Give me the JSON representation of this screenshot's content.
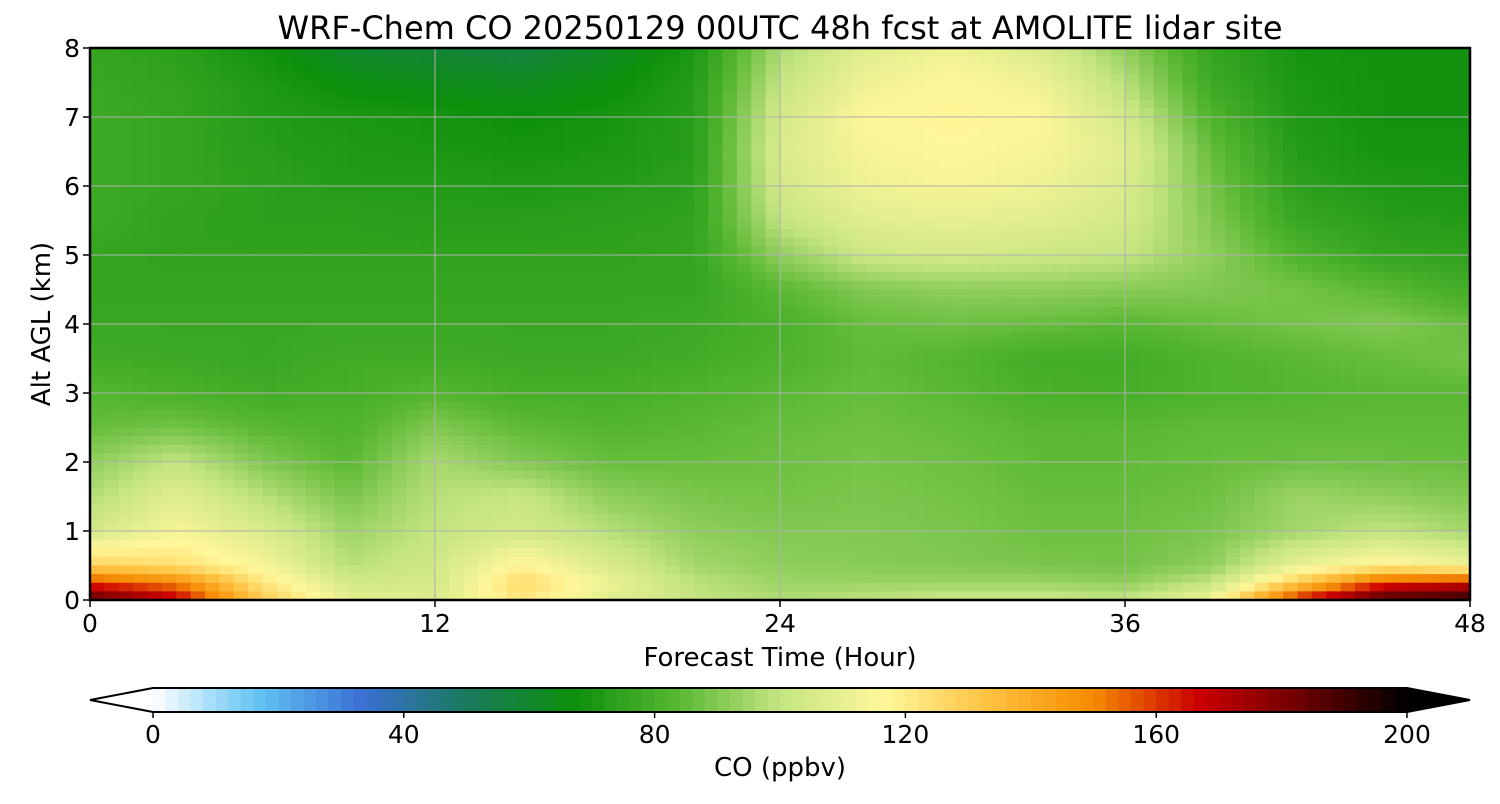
{
  "chart_data": {
    "type": "heatmap",
    "title": "WRF-Chem CO  20250129 00UTC 48h fcst at AMOLITE lidar site",
    "xlabel": "Forecast Time (Hour)",
    "ylabel": "Alt AGL (km)",
    "xlim": [
      0,
      48
    ],
    "ylim": [
      0,
      8
    ],
    "xticks": [
      0,
      12,
      24,
      36,
      48
    ],
    "yticks": [
      0,
      1,
      2,
      3,
      4,
      5,
      6,
      7,
      8
    ],
    "grid": true,
    "x": [
      0,
      3,
      6,
      9,
      12,
      15,
      18,
      21,
      24,
      27,
      30,
      33,
      36,
      39,
      42,
      45,
      48
    ],
    "y": [
      0,
      0.25,
      0.5,
      1,
      1.5,
      2,
      2.5,
      3,
      3.5,
      4,
      4.5,
      5,
      5.5,
      6,
      6.5,
      7,
      7.5,
      8
    ],
    "z": [
      [
        188,
        170,
        130,
        110,
        106,
        122,
        108,
        100,
        97,
        99,
        102,
        102,
        100,
        112,
        165,
        190,
        195
      ],
      [
        160,
        150,
        122,
        104,
        104,
        126,
        112,
        99,
        94,
        94,
        94,
        94,
        92,
        100,
        130,
        160,
        165
      ],
      [
        128,
        124,
        114,
        98,
        103,
        118,
        106,
        95,
        92,
        91,
        90,
        89,
        88,
        92,
        110,
        118,
        112
      ],
      [
        104,
        114,
        106,
        94,
        100,
        104,
        98,
        92,
        90,
        90,
        89,
        87,
        87,
        89,
        95,
        100,
        95
      ],
      [
        97,
        108,
        98,
        89,
        98,
        101,
        92,
        89,
        88,
        89,
        88,
        86,
        86,
        87,
        94,
        92,
        90
      ],
      [
        92,
        100,
        90,
        84,
        96,
        90,
        86,
        86,
        87,
        88,
        87,
        85,
        85,
        86,
        87,
        87,
        86
      ],
      [
        86,
        88,
        84,
        82,
        90,
        85,
        83,
        84,
        86,
        87,
        86,
        84,
        84,
        85,
        85,
        85,
        85
      ],
      [
        83,
        81,
        79,
        80,
        83,
        80,
        80,
        82,
        84,
        86,
        84,
        81,
        80,
        82,
        83,
        84,
        84
      ],
      [
        79,
        78,
        77,
        79,
        79,
        78,
        78,
        79,
        82,
        85,
        83,
        79,
        79,
        82,
        84,
        86,
        88
      ],
      [
        77,
        77,
        77,
        77,
        77,
        77,
        77,
        78,
        81,
        86,
        87,
        86,
        84,
        86,
        88,
        90,
        86
      ],
      [
        76,
        76,
        76,
        76,
        76,
        76,
        76,
        76,
        84,
        90,
        92,
        92,
        91,
        90,
        88,
        84,
        79
      ],
      [
        76,
        75,
        75,
        75,
        75,
        75,
        75,
        76,
        92,
        102,
        104,
        102,
        100,
        92,
        82,
        76,
        75
      ],
      [
        78,
        75,
        74,
        74,
        73,
        73,
        74,
        75,
        100,
        108,
        110,
        108,
        104,
        90,
        77,
        73,
        72
      ],
      [
        78,
        76,
        74,
        72,
        72,
        71,
        72,
        74,
        104,
        112,
        114,
        112,
        106,
        88,
        74,
        71,
        70
      ],
      [
        78,
        76,
        73,
        71,
        70,
        69,
        70,
        73,
        106,
        114,
        116,
        114,
        108,
        86,
        72,
        69,
        69
      ],
      [
        78,
        76,
        72,
        70,
        69,
        67,
        69,
        73,
        104,
        116,
        118,
        116,
        104,
        82,
        71,
        68,
        68
      ],
      [
        77,
        75,
        71,
        66,
        64,
        63,
        66,
        72,
        100,
        112,
        116,
        112,
        98,
        78,
        70,
        68,
        68
      ],
      [
        76,
        74,
        68,
        60,
        58,
        56,
        62,
        70,
        96,
        108,
        112,
        106,
        92,
        76,
        69,
        68,
        68
      ]
    ],
    "colorbar": {
      "label": "CO  (ppbv)",
      "ticks": [
        0,
        40,
        80,
        120,
        160,
        200
      ],
      "range": [
        0,
        200
      ],
      "extend": "both",
      "colors": [
        "#ffffff",
        "#62c3f3",
        "#3b6fd4",
        "#1a7a5e",
        "#0c8f0c",
        "#55b630",
        "#c5e582",
        "#fff79a",
        "#ffc140",
        "#f58b00",
        "#cc0000",
        "#6b0000",
        "#000000"
      ]
    }
  }
}
